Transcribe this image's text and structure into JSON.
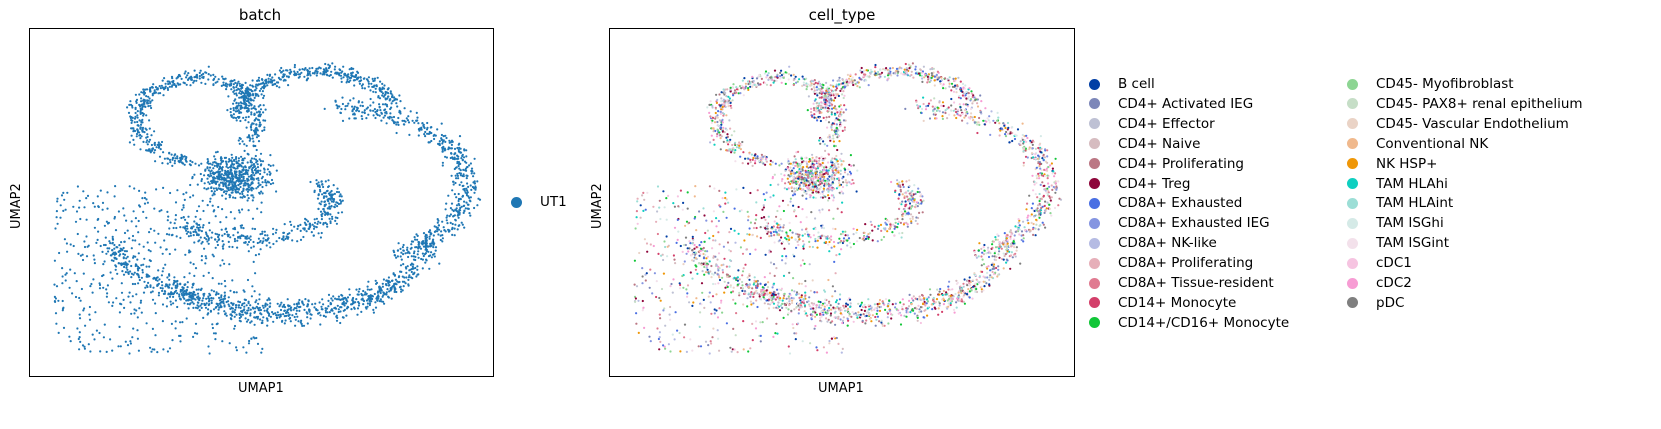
{
  "chart_data": [
    {
      "type": "scatter",
      "title": "batch",
      "xlabel": "UMAP1",
      "ylabel": "UMAP2",
      "x_ticks": [],
      "y_ticks": [],
      "legend": [
        {
          "label": "UT1",
          "color": "#1f77b4"
        }
      ]
    },
    {
      "type": "scatter",
      "title": "cell_type",
      "xlabel": "UMAP1",
      "ylabel": "UMAP2",
      "x_ticks": [],
      "y_ticks": [],
      "legend": [
        {
          "label": "B cell",
          "color": "#023fa5"
        },
        {
          "label": "CD4+ Activated IEG",
          "color": "#7d87b9"
        },
        {
          "label": "CD4+ Effector",
          "color": "#bec1d4"
        },
        {
          "label": "CD4+ Naive",
          "color": "#d6bcc0"
        },
        {
          "label": "CD4+ Proliferating",
          "color": "#bb7784"
        },
        {
          "label": "CD4+ Treg",
          "color": "#8e063b"
        },
        {
          "label": "CD8A+ Exhausted",
          "color": "#4a6fe3"
        },
        {
          "label": "CD8A+ Exhausted IEG",
          "color": "#8595e1"
        },
        {
          "label": "CD8A+ NK-like",
          "color": "#b5bbe3"
        },
        {
          "label": "CD8A+ Proliferating",
          "color": "#e6afb9"
        },
        {
          "label": "CD8A+ Tissue-resident",
          "color": "#e07b91"
        },
        {
          "label": "CD14+ Monocyte",
          "color": "#d33f6a"
        },
        {
          "label": "CD14+/CD16+ Monocyte",
          "color": "#11c638"
        },
        {
          "label": "CD45- Myofibroblast",
          "color": "#8dd593"
        },
        {
          "label": "CD45- PAX8+ renal epithelium",
          "color": "#c6dec7"
        },
        {
          "label": "CD45- Vascular Endothelium",
          "color": "#ead3c6"
        },
        {
          "label": "Conventional NK",
          "color": "#f0b98d"
        },
        {
          "label": "NK HSP+",
          "color": "#ef9708"
        },
        {
          "label": "TAM HLAhi",
          "color": "#0fcfc0"
        },
        {
          "label": "TAM HLAint",
          "color": "#9cded6"
        },
        {
          "label": "TAM ISGhi",
          "color": "#d5eae7"
        },
        {
          "label": "TAM ISGint",
          "color": "#f3e1eb"
        },
        {
          "label": "cDC1",
          "color": "#f6c4e1"
        },
        {
          "label": "cDC2",
          "color": "#f79cd4"
        },
        {
          "label": "pDC",
          "color": "#7f7f7f"
        }
      ]
    }
  ]
}
